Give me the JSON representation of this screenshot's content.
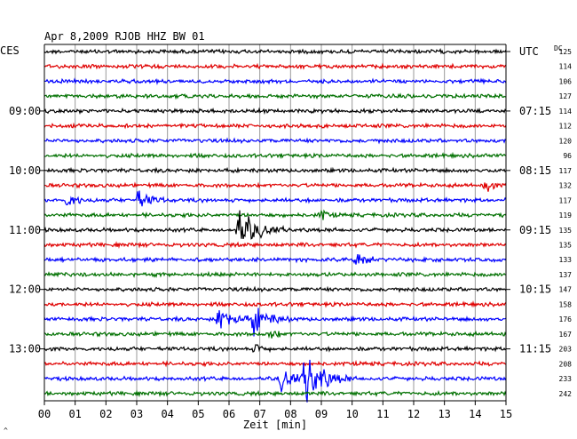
{
  "header": {
    "title": "Apr 8,2009  RJOB HHZ BW 01",
    "left_tz": "CES",
    "right_tz": "UTC",
    "dc_label": "DC",
    "corner_mark": "^"
  },
  "chart_data": {
    "type": "line",
    "title": "Apr 8,2009  RJOB HHZ BW 01",
    "xlabel": "Zeit [min]",
    "xlim": [
      0,
      15
    ],
    "x_ticks": [
      "00",
      "01",
      "02",
      "03",
      "04",
      "05",
      "06",
      "07",
      "08",
      "09",
      "10",
      "11",
      "12",
      "13",
      "14",
      "15"
    ],
    "grid": true,
    "trace_colors": [
      "#000000",
      "#e00000",
      "#0000ff",
      "#007000"
    ],
    "left_time_labels": [
      {
        "trace_index": 4,
        "label": "09:00"
      },
      {
        "trace_index": 8,
        "label": "10:00"
      },
      {
        "trace_index": 12,
        "label": "11:00"
      },
      {
        "trace_index": 16,
        "label": "12:00"
      },
      {
        "trace_index": 20,
        "label": "13:00"
      }
    ],
    "right_time_labels": [
      {
        "trace_index": 0,
        "label": "UTC"
      },
      {
        "trace_index": 4,
        "label": "07:15"
      },
      {
        "trace_index": 8,
        "label": "08:15"
      },
      {
        "trace_index": 12,
        "label": "09:15"
      },
      {
        "trace_index": 16,
        "label": "10:15"
      },
      {
        "trace_index": 20,
        "label": "11:15"
      }
    ],
    "dc_offsets": [
      "125",
      "114",
      "106",
      "127",
      "114",
      "112",
      "120",
      "96",
      "117",
      "132",
      "117",
      "119",
      "135",
      "135",
      "133",
      "137",
      "147",
      "158",
      "176",
      "167",
      "203",
      "208",
      "233",
      "242"
    ],
    "events": [
      {
        "trace_index": 9,
        "minute": 14.4,
        "amplitude": 0.6,
        "duration": 0.4
      },
      {
        "trace_index": 10,
        "minute": 0.8,
        "amplitude": 0.8,
        "duration": 0.6
      },
      {
        "trace_index": 10,
        "minute": 3.0,
        "amplitude": 1.0,
        "duration": 1.0
      },
      {
        "trace_index": 11,
        "minute": 9.0,
        "amplitude": 0.5,
        "duration": 0.5
      },
      {
        "trace_index": 12,
        "minute": 6.3,
        "amplitude": 2.0,
        "duration": 1.5
      },
      {
        "trace_index": 14,
        "minute": 10.2,
        "amplitude": 0.7,
        "duration": 0.8
      },
      {
        "trace_index": 18,
        "minute": 5.7,
        "amplitude": 1.1,
        "duration": 1.3
      },
      {
        "trace_index": 18,
        "minute": 6.8,
        "amplitude": 1.3,
        "duration": 1.2
      },
      {
        "trace_index": 19,
        "minute": 7.4,
        "amplitude": 0.5,
        "duration": 0.5
      },
      {
        "trace_index": 20,
        "minute": 6.9,
        "amplitude": 0.5,
        "duration": 0.5
      },
      {
        "trace_index": 22,
        "minute": 7.7,
        "amplitude": 1.0,
        "duration": 1.4
      },
      {
        "trace_index": 22,
        "minute": 8.5,
        "amplitude": 2.2,
        "duration": 1.5
      }
    ]
  }
}
